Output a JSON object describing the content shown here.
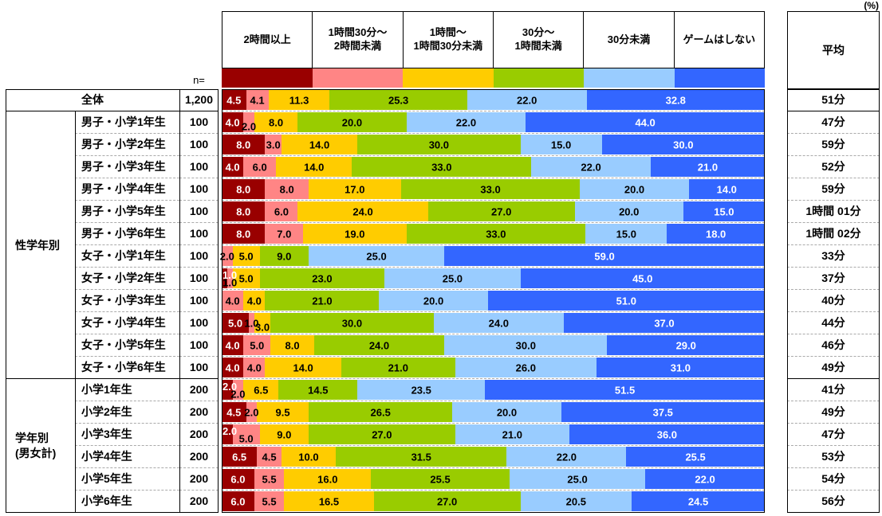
{
  "header": {
    "n_label": "n=",
    "percent_label": "(%)",
    "avg_label": "平均"
  },
  "chart_data": {
    "type": "bar",
    "stacked": true,
    "orientation": "horizontal",
    "value_unit": "%",
    "xlim": [
      0,
      100
    ],
    "legend": [
      {
        "label": "2時間以上",
        "color": "#990000"
      },
      {
        "label": "1時間30分〜\n2時間未満",
        "color": "#FF8585"
      },
      {
        "label": "1時間〜\n1時間30分未満",
        "color": "#FFCC00"
      },
      {
        "label": "30分〜\n1時間未満",
        "color": "#99CC00"
      },
      {
        "label": "30分未満",
        "color": "#99CCFF"
      },
      {
        "label": "ゲームはしない",
        "color": "#3366FF"
      }
    ],
    "groups": [
      {
        "label": "全体",
        "span": 1,
        "merged": true
      },
      {
        "label": "性学年別",
        "span": 12
      },
      {
        "label": "学年別\n(男女計)",
        "span": 6
      }
    ],
    "rows": [
      {
        "label": "全体",
        "n": "1,200",
        "values": [
          4.5,
          4.1,
          11.3,
          25.3,
          22.0,
          32.8
        ],
        "avg": "51分"
      },
      {
        "label": "男子・小学1年生",
        "n": "100",
        "values": [
          4.0,
          2.0,
          8.0,
          20.0,
          22.0,
          44.0
        ],
        "avg": "47分",
        "drops": [
          1
        ]
      },
      {
        "label": "男子・小学2年生",
        "n": "100",
        "values": [
          8.0,
          3.0,
          14.0,
          30.0,
          15.0,
          30.0
        ],
        "avg": "59分"
      },
      {
        "label": "男子・小学3年生",
        "n": "100",
        "values": [
          4.0,
          6.0,
          14.0,
          33.0,
          22.0,
          21.0
        ],
        "avg": "52分"
      },
      {
        "label": "男子・小学4年生",
        "n": "100",
        "values": [
          8.0,
          8.0,
          17.0,
          33.0,
          20.0,
          14.0
        ],
        "avg": "59分"
      },
      {
        "label": "男子・小学5年生",
        "n": "100",
        "values": [
          8.0,
          6.0,
          24.0,
          27.0,
          20.0,
          15.0
        ],
        "avg": "1時間 01分"
      },
      {
        "label": "男子・小学6年生",
        "n": "100",
        "values": [
          8.0,
          7.0,
          19.0,
          33.0,
          15.0,
          18.0
        ],
        "avg": "1時間 02分"
      },
      {
        "label": "女子・小学1年生",
        "n": "100",
        "values": [
          0,
          2.0,
          5.0,
          9.0,
          25.0,
          59.0
        ],
        "avg": "33分"
      },
      {
        "label": "女子・小学2年生",
        "n": "100",
        "values": [
          1.0,
          1.0,
          5.0,
          23.0,
          25.0,
          45.0
        ],
        "avg": "37分",
        "drops": [
          1
        ]
      },
      {
        "label": "女子・小学3年生",
        "n": "100",
        "values": [
          0,
          4.0,
          4.0,
          21.0,
          20.0,
          51.0
        ],
        "avg": "40分"
      },
      {
        "label": "女子・小学4年生",
        "n": "100",
        "values": [
          5.0,
          1.0,
          3.0,
          30.0,
          24.0,
          37.0
        ],
        "avg": "44分",
        "drops": [
          2
        ]
      },
      {
        "label": "女子・小学5年生",
        "n": "100",
        "values": [
          4.0,
          5.0,
          8.0,
          24.0,
          30.0,
          29.0
        ],
        "avg": "46分"
      },
      {
        "label": "女子・小学6年生",
        "n": "100",
        "values": [
          4.0,
          4.0,
          14.0,
          21.0,
          26.0,
          31.0
        ],
        "avg": "49分"
      },
      {
        "label": "小学1年生",
        "n": "200",
        "values": [
          2.0,
          2.0,
          6.5,
          14.5,
          23.5,
          51.5
        ],
        "avg": "41分",
        "drops": [
          1
        ]
      },
      {
        "label": "小学2年生",
        "n": "200",
        "values": [
          4.5,
          2.0,
          9.5,
          26.5,
          20.0,
          37.5
        ],
        "avg": "49分"
      },
      {
        "label": "小学3年生",
        "n": "200",
        "values": [
          2.0,
          5.0,
          9.0,
          27.0,
          21.0,
          36.0
        ],
        "avg": "47分",
        "drops": [
          1
        ]
      },
      {
        "label": "小学4年生",
        "n": "200",
        "values": [
          6.5,
          4.5,
          10.0,
          31.5,
          22.0,
          25.5
        ],
        "avg": "53分"
      },
      {
        "label": "小学5年生",
        "n": "200",
        "values": [
          6.0,
          5.5,
          16.0,
          25.5,
          25.0,
          22.0
        ],
        "avg": "54分"
      },
      {
        "label": "小学6年生",
        "n": "200",
        "values": [
          6.0,
          5.5,
          16.5,
          27.0,
          20.5,
          24.5
        ],
        "avg": "56分"
      }
    ]
  }
}
